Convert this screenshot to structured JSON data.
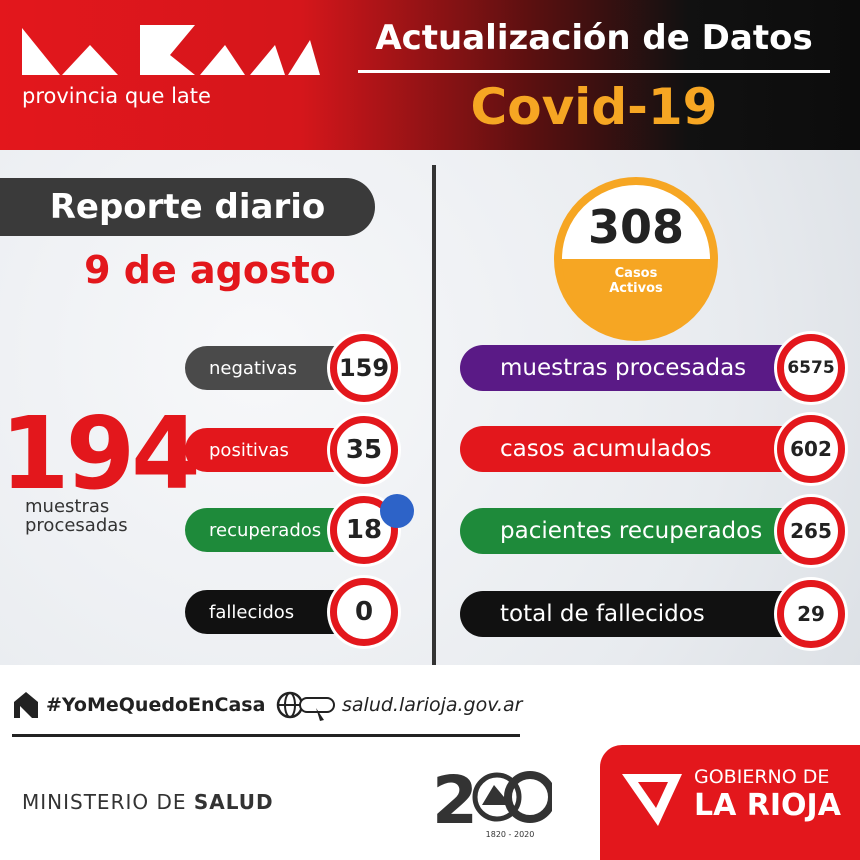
{
  "header": {
    "brand": "provincia que late",
    "title": "Actualización de Datos",
    "subtitle": "Covid-19"
  },
  "report": {
    "label": "Reporte diario",
    "date": "9 de agosto"
  },
  "total": {
    "value": 194,
    "label": "muestras procesadas"
  },
  "daily": [
    {
      "label": "negativas",
      "value": 159,
      "color": "#4a4a4a"
    },
    {
      "label": "positivas",
      "value": 35,
      "color": "#e3171c"
    },
    {
      "label": "recuperados",
      "value": 18,
      "color": "#1e8a3a"
    },
    {
      "label": "fallecidos",
      "value": 0,
      "color": "#111111"
    }
  ],
  "active": {
    "value": 308,
    "label": "Casos Activos"
  },
  "cumulative": [
    {
      "label": "muestras procesadas",
      "value": 6575,
      "color": "#5a1a86"
    },
    {
      "label": "casos acumulados",
      "value": 602,
      "color": "#e3171c"
    },
    {
      "label": "pacientes recuperados",
      "value": 265,
      "color": "#1e8a3a"
    },
    {
      "label": "total de fallecidos",
      "value": 29,
      "color": "#111111"
    }
  ],
  "footer": {
    "hashtag": "#YoMeQuedoEnCasa",
    "website": "salud.larioja.gov.ar",
    "ministry": "MINISTERIO DE",
    "ministry_bold": "SALUD",
    "anniversary": "1820 - 2020",
    "gov_line1": "GOBIERNO DE",
    "gov_line2": "LA RIOJA"
  }
}
